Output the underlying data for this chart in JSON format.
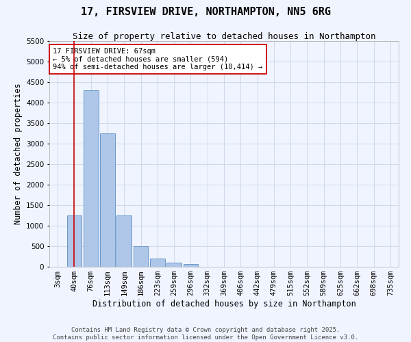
{
  "title": "17, FIRSVIEW DRIVE, NORTHAMPTON, NN5 6RG",
  "subtitle": "Size of property relative to detached houses in Northampton",
  "xlabel": "Distribution of detached houses by size in Northampton",
  "ylabel": "Number of detached properties",
  "categories": [
    "3sqm",
    "40sqm",
    "76sqm",
    "113sqm",
    "149sqm",
    "186sqm",
    "223sqm",
    "259sqm",
    "296sqm",
    "332sqm",
    "369sqm",
    "406sqm",
    "442sqm",
    "479sqm",
    "515sqm",
    "552sqm",
    "589sqm",
    "625sqm",
    "662sqm",
    "698sqm",
    "735sqm"
  ],
  "values": [
    0,
    1250,
    4300,
    3250,
    1250,
    500,
    200,
    100,
    60,
    0,
    0,
    0,
    0,
    0,
    0,
    0,
    0,
    0,
    0,
    0,
    0
  ],
  "bar_color": "#aec6e8",
  "bar_edge_color": "#5a8fc4",
  "vline_x": 1,
  "vline_color": "#cc0000",
  "annotation_line1": "17 FIRSVIEW DRIVE: 67sqm",
  "annotation_line2": "← 5% of detached houses are smaller (594)",
  "annotation_line3": "94% of semi-detached houses are larger (10,414) →",
  "annotation_box_color": "#ffffff",
  "annotation_box_edge": "#cc0000",
  "ylim": [
    0,
    5500
  ],
  "yticks": [
    0,
    500,
    1000,
    1500,
    2000,
    2500,
    3000,
    3500,
    4000,
    4500,
    5000,
    5500
  ],
  "footer_line1": "Contains HM Land Registry data © Crown copyright and database right 2025.",
  "footer_line2": "Contains public sector information licensed under the Open Government Licence v3.0.",
  "bg_color": "#f0f4ff",
  "plot_bg_color": "#f0f4ff",
  "grid_color": "#c8d4e8",
  "title_fontsize": 11,
  "subtitle_fontsize": 9,
  "axis_label_fontsize": 8.5,
  "tick_fontsize": 7.5,
  "annotation_fontsize": 7.5,
  "footer_fontsize": 6.5
}
